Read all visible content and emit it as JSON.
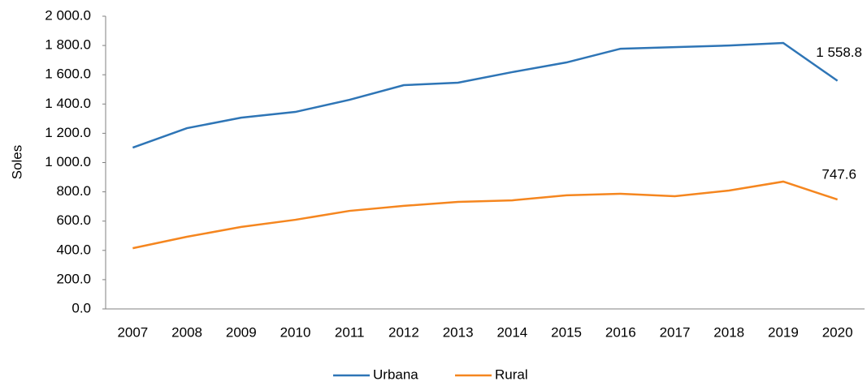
{
  "chart_data": {
    "type": "line",
    "y_label": "Soles",
    "categories": [
      "2007",
      "2008",
      "2009",
      "2010",
      "2011",
      "2012",
      "2013",
      "2014",
      "2015",
      "2016",
      "2017",
      "2018",
      "2019",
      "2020"
    ],
    "series": [
      {
        "name": "Urbana",
        "color": "#2e75b6",
        "values": [
          1102,
          1235,
          1307,
          1346,
          1429,
          1529,
          1546,
          1618,
          1684,
          1778,
          1789,
          1800,
          1817,
          1558.8
        ],
        "value_labels": [
          null,
          null,
          null,
          null,
          null,
          null,
          null,
          null,
          null,
          null,
          null,
          null,
          null,
          "1 558.8"
        ]
      },
      {
        "name": "Rural",
        "color": "#f5861f",
        "values": [
          415,
          493,
          560,
          609,
          670,
          704,
          731,
          742,
          776,
          787,
          770,
          809,
          870,
          747.6
        ]
      }
    ],
    "ylim": [
      0,
      2000
    ],
    "yticks": [
      {
        "value": 0,
        "label": "0.0"
      },
      {
        "value": 200,
        "label": "200.0"
      },
      {
        "value": 400,
        "label": "400.0"
      },
      {
        "value": 600,
        "label": "600.0"
      },
      {
        "value": 800,
        "label": "800.0"
      },
      {
        "value": 1000,
        "label": "1 000.0"
      },
      {
        "value": 1200,
        "label": "1 200.0"
      },
      {
        "value": 1400,
        "label": "1 400.0"
      },
      {
        "value": 1600,
        "label": "1 600.0"
      },
      {
        "value": 1800,
        "label": "1 800.0"
      },
      {
        "value": 2000,
        "label": "2 000.0"
      }
    ],
    "grid": false,
    "legend": "bottom"
  }
}
